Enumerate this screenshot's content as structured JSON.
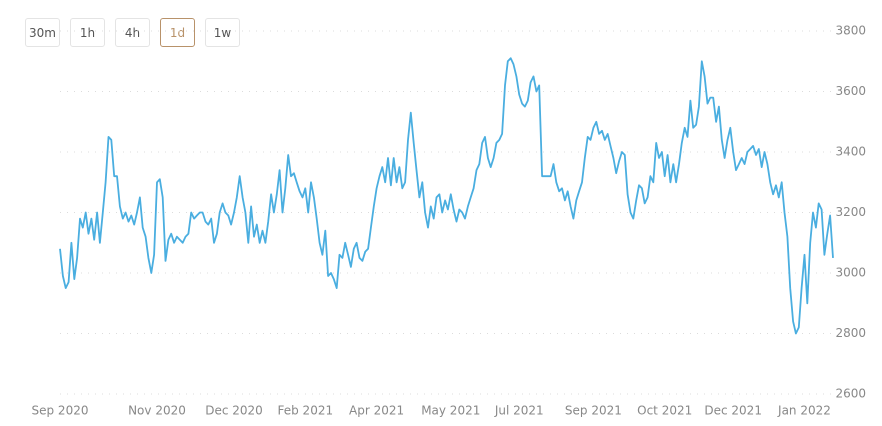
{
  "toolbar": {
    "buttons": [
      "30m",
      "1h",
      "4h",
      "1d",
      "1w"
    ],
    "selected": 3
  },
  "chart_data": {
    "type": "line",
    "color": "#4aaee0",
    "grid": true,
    "xlim": [
      0,
      271
    ],
    "xticks": [
      {
        "value": 0,
        "label": "Sep 2020"
      },
      {
        "value": 34,
        "label": "Nov 2020"
      },
      {
        "value": 61,
        "label": "Dec 2020"
      },
      {
        "value": 86,
        "label": "Feb 2021"
      },
      {
        "value": 111,
        "label": "Apr 2021"
      },
      {
        "value": 137,
        "label": "May 2021"
      },
      {
        "value": 161,
        "label": "Jul 2021"
      },
      {
        "value": 187,
        "label": "Sep 2021"
      },
      {
        "value": 212,
        "label": "Oct 2021"
      },
      {
        "value": 236,
        "label": "Dec 2021"
      },
      {
        "value": 261,
        "label": "Jan 2022"
      }
    ],
    "ylim": [
      2600,
      3800
    ],
    "yticks": [
      2600,
      2800,
      3000,
      3200,
      3400,
      3600,
      3800
    ],
    "values": [
      3080,
      2990,
      2950,
      2970,
      3100,
      2980,
      3050,
      3180,
      3150,
      3200,
      3130,
      3180,
      3110,
      3200,
      3100,
      3200,
      3300,
      3450,
      3440,
      3320,
      3320,
      3220,
      3180,
      3200,
      3170,
      3190,
      3160,
      3200,
      3250,
      3150,
      3120,
      3050,
      3000,
      3060,
      3300,
      3310,
      3250,
      3040,
      3110,
      3130,
      3100,
      3120,
      3110,
      3100,
      3120,
      3130,
      3200,
      3180,
      3190,
      3200,
      3200,
      3170,
      3160,
      3180,
      3100,
      3130,
      3200,
      3230,
      3200,
      3190,
      3160,
      3200,
      3250,
      3320,
      3250,
      3200,
      3100,
      3220,
      3120,
      3160,
      3100,
      3140,
      3100,
      3170,
      3260,
      3200,
      3260,
      3340,
      3200,
      3280,
      3390,
      3320,
      3330,
      3300,
      3270,
      3250,
      3280,
      3200,
      3300,
      3250,
      3180,
      3100,
      3060,
      3140,
      2990,
      3000,
      2980,
      2950,
      3060,
      3050,
      3100,
      3060,
      3020,
      3080,
      3100,
      3050,
      3040,
      3070,
      3080,
      3150,
      3220,
      3280,
      3320,
      3350,
      3300,
      3380,
      3290,
      3380,
      3300,
      3350,
      3280,
      3300,
      3440,
      3530,
      3430,
      3340,
      3250,
      3300,
      3200,
      3150,
      3220,
      3180,
      3250,
      3260,
      3200,
      3240,
      3210,
      3260,
      3210,
      3170,
      3210,
      3200,
      3180,
      3220,
      3250,
      3280,
      3340,
      3360,
      3430,
      3450,
      3380,
      3350,
      3380,
      3430,
      3440,
      3460,
      3620,
      3700,
      3710,
      3690,
      3650,
      3590,
      3560,
      3550,
      3570,
      3630,
      3650,
      3600,
      3620,
      3320,
      3320,
      3320,
      3320,
      3360,
      3300,
      3270,
      3280,
      3240,
      3270,
      3220,
      3180,
      3240,
      3270,
      3300,
      3380,
      3450,
      3440,
      3480,
      3500,
      3460,
      3470,
      3440,
      3460,
      3420,
      3380,
      3330,
      3370,
      3400,
      3390,
      3260,
      3200,
      3180,
      3240,
      3290,
      3280,
      3230,
      3250,
      3320,
      3300,
      3430,
      3380,
      3400,
      3320,
      3390,
      3300,
      3360,
      3300,
      3360,
      3430,
      3480,
      3450,
      3570,
      3480,
      3490,
      3550,
      3700,
      3650,
      3560,
      3580,
      3580,
      3500,
      3550,
      3440,
      3380,
      3440,
      3480,
      3400,
      3340,
      3360,
      3380,
      3360,
      3400,
      3410,
      3420,
      3390,
      3410,
      3350,
      3400,
      3360,
      3300,
      3260,
      3290,
      3250,
      3300,
      3200,
      3120,
      2950,
      2840,
      2800,
      2820,
      2950,
      3060,
      2900,
      3100,
      3200,
      3150,
      3230,
      3210,
      3060,
      3130,
      3190,
      3050
    ]
  }
}
